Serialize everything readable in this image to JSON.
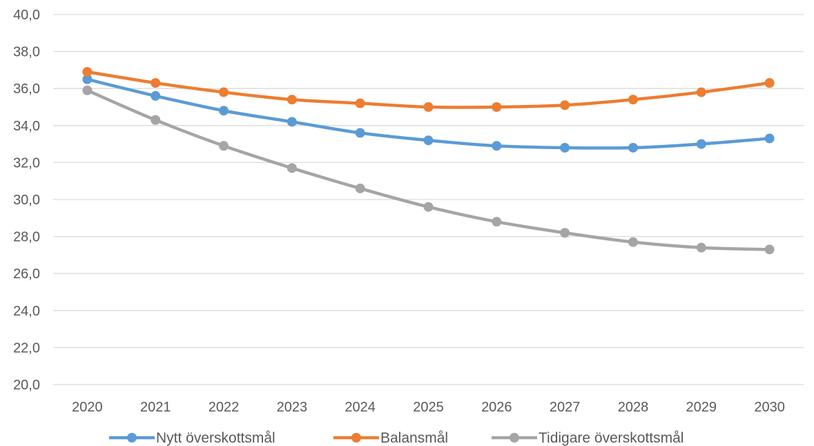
{
  "chart_data": {
    "type": "line",
    "title": "",
    "xlabel": "",
    "ylabel": "",
    "categories": [
      "2020",
      "2021",
      "2022",
      "2023",
      "2024",
      "2025",
      "2026",
      "2027",
      "2028",
      "2029",
      "2030"
    ],
    "ylim": [
      20,
      40
    ],
    "yticks": [
      "20,0",
      "22,0",
      "24,0",
      "26,0",
      "28,0",
      "30,0",
      "32,0",
      "34,0",
      "36,0",
      "38,0",
      "40,0"
    ],
    "grid": true,
    "legend_position": "bottom",
    "series": [
      {
        "name": "Nytt överskottsmål",
        "color": "#5b9bd5",
        "values": [
          36.5,
          35.6,
          34.8,
          34.2,
          33.6,
          33.2,
          32.9,
          32.8,
          32.8,
          33.0,
          33.3
        ]
      },
      {
        "name": "Balansmål",
        "color": "#ed7d31",
        "values": [
          36.9,
          36.3,
          35.8,
          35.4,
          35.2,
          35.0,
          35.0,
          35.1,
          35.4,
          35.8,
          36.3
        ]
      },
      {
        "name": "Tidigare överskottsmål",
        "color": "#a5a5a5",
        "values": [
          35.9,
          34.3,
          32.9,
          31.7,
          30.6,
          29.6,
          28.8,
          28.2,
          27.7,
          27.4,
          27.3
        ]
      }
    ]
  }
}
